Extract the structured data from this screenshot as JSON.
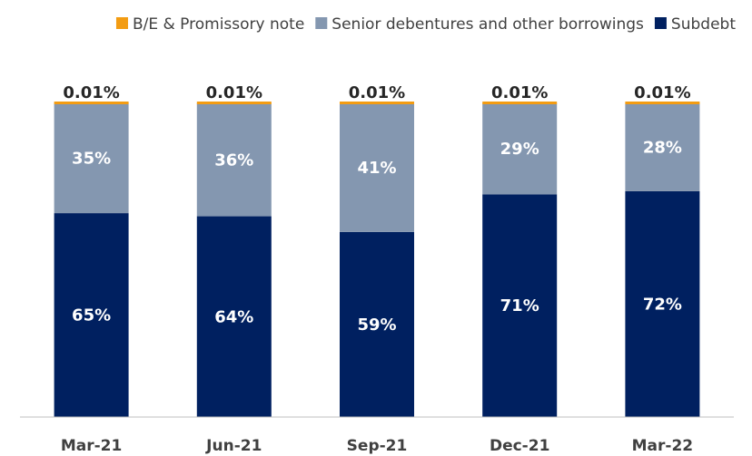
{
  "chart_data": {
    "type": "bar",
    "stacked": true,
    "normalized_percent": true,
    "categories": [
      "Mar-21",
      "Jun-21",
      "Sep-21",
      "Dec-21",
      "Mar-22"
    ],
    "series": [
      {
        "name": "Subdebt",
        "color": "#002060",
        "label_color": "#ffffff",
        "values": [
          65,
          64,
          59,
          71,
          72
        ],
        "labels": [
          "65%",
          "64%",
          "59%",
          "71%",
          "72%"
        ]
      },
      {
        "name": "Senior debentures and other borrowings",
        "color": "#8497b0",
        "label_color": "#ffffff",
        "values": [
          35,
          36,
          41,
          29,
          28
        ],
        "labels": [
          "35%",
          "36%",
          "41%",
          "29%",
          "28%"
        ]
      },
      {
        "name": "B/E & Promissory note",
        "color": "#f39c12",
        "label_color": "#262626",
        "values": [
          0.01,
          0.01,
          0.01,
          0.01,
          0.01
        ],
        "labels": [
          "0.01%",
          "0.01%",
          "0.01%",
          "0.01%",
          "0.01%"
        ]
      }
    ],
    "legend": {
      "position": "top-right",
      "order": [
        "B/E & Promissory note",
        "Senior debentures and other borrowings",
        "Subdebt"
      ]
    },
    "ylim": [
      0,
      100
    ],
    "grid": false
  }
}
